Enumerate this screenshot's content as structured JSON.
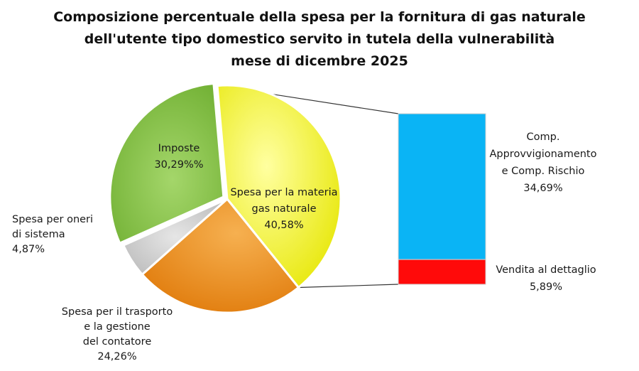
{
  "title": {
    "line1": "Composizione percentuale della spesa per la fornitura di gas naturale",
    "line2": "dell'utente tipo domestico servito in tutela della vulnerabilità",
    "line3": "mese di dicembre 2025"
  },
  "chart_data": [
    {
      "type": "pie",
      "slices": [
        {
          "label_lines": [
            "Spesa per la materia",
            "gas naturale"
          ],
          "value_label": "40,58%",
          "value": 40.58,
          "color": "#f5f520"
        },
        {
          "label_lines": [
            "Spesa per il trasporto",
            "e la gestione",
            "del contatore"
          ],
          "value_label": "24,26%",
          "value": 24.26,
          "color": "#ef8a14"
        },
        {
          "label_lines": [
            "Spesa per oneri",
            "di sistema"
          ],
          "value_label": "4,87%",
          "value": 4.87,
          "color": "#c8c8c8"
        },
        {
          "label_lines": [
            "Imposte"
          ],
          "value_label": "30,29%%",
          "value": 30.29,
          "color": "#7dbb3c"
        }
      ]
    },
    {
      "type": "bar",
      "stacked": true,
      "breakdown_of": "Spesa per la materia gas naturale",
      "segments": [
        {
          "label_lines": [
            "Comp.",
            "Approvvigionamento",
            "e  Comp. Rischio"
          ],
          "value_label": "34,69%",
          "value": 34.69,
          "color": "#0ab4f5"
        },
        {
          "label_lines": [
            "Vendita al dettaglio"
          ],
          "value_label": "5,89%",
          "value": 5.89,
          "color": "#ff0a0a"
        }
      ]
    }
  ]
}
